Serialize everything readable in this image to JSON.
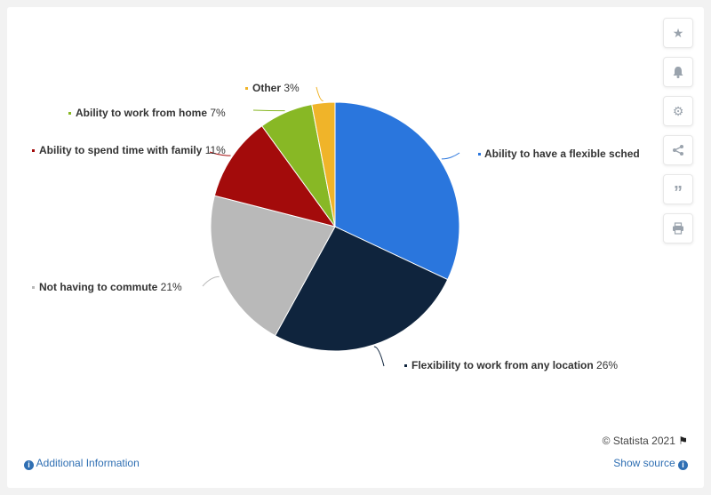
{
  "chart_data": {
    "type": "pie",
    "slices": [
      {
        "label": "Ability to have a flexible sched",
        "value": 32,
        "color": "#2a76dd"
      },
      {
        "label": "Flexibility to work from any location",
        "value": 26,
        "color": "#0f243d"
      },
      {
        "label": "Not having to commute",
        "value": 21,
        "color": "#b9b9b9"
      },
      {
        "label": "Ability to spend time with family",
        "value": 11,
        "color": "#a30b0b"
      },
      {
        "label": "Ability to work from home",
        "value": 7,
        "color": "#88b825"
      },
      {
        "label": "Other",
        "value": 3,
        "color": "#f0b429"
      }
    ],
    "value_suffix": "%"
  },
  "labels": {
    "flexible_value": "",
    "location_value": "26%",
    "commute_value": "21%",
    "family_value": "11%",
    "home_value": "7%",
    "other_value": "3%"
  },
  "side_tools": [
    "star-icon",
    "bell-icon",
    "gear-icon",
    "share-icon",
    "quote-icon",
    "print-icon"
  ],
  "footer": {
    "credit": "© Statista 2021",
    "additional_info": "Additional Information",
    "show_source": "Show source"
  }
}
